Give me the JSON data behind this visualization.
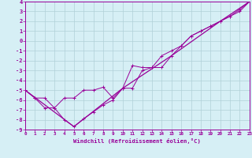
{
  "xlabel": "Windchill (Refroidissement éolien,°C)",
  "bg_color": "#d6eff5",
  "line_color": "#990099",
  "grid_color": "#b0d0d8",
  "x_min": 0,
  "x_max": 23,
  "y_min": -9,
  "y_max": 4,
  "series1_x": [
    0,
    1,
    2,
    3,
    4,
    5,
    6,
    7,
    8,
    9,
    10,
    11,
    12,
    13,
    14,
    15,
    16,
    17,
    18,
    19,
    20,
    21,
    22,
    23
  ],
  "series1_y": [
    -5.0,
    -5.8,
    -5.8,
    -6.8,
    -8.0,
    -8.7,
    -7.9,
    -7.2,
    -6.5,
    -6.0,
    -4.8,
    -4.8,
    -3.0,
    -2.7,
    -2.7,
    -1.5,
    -0.5,
    0.5,
    1.0,
    1.5,
    2.0,
    2.5,
    3.0,
    4.0
  ],
  "series2_x": [
    0,
    1,
    2,
    3,
    4,
    5,
    6,
    7,
    8,
    9,
    10,
    11,
    12,
    13,
    14,
    15,
    16,
    17,
    18,
    19,
    20,
    21,
    22,
    23
  ],
  "series2_y": [
    -5.0,
    -5.8,
    -6.8,
    -6.8,
    -5.8,
    -5.8,
    -5.0,
    -5.0,
    -4.7,
    -5.8,
    -4.8,
    -2.5,
    -2.7,
    -2.7,
    -1.5,
    -1.0,
    -0.5,
    0.5,
    1.0,
    1.5,
    2.0,
    2.5,
    3.2,
    4.0
  ],
  "series3_x": [
    0,
    5,
    10,
    15,
    20,
    23
  ],
  "series3_y": [
    -5.0,
    -8.7,
    -4.8,
    -1.5,
    2.0,
    4.0
  ],
  "xticks": [
    0,
    1,
    2,
    3,
    4,
    5,
    6,
    7,
    8,
    9,
    10,
    11,
    12,
    13,
    14,
    15,
    16,
    17,
    18,
    19,
    20,
    21,
    22,
    23
  ],
  "yticks": [
    -9,
    -8,
    -7,
    -6,
    -5,
    -4,
    -3,
    -2,
    -1,
    0,
    1,
    2,
    3,
    4
  ],
  "xtick_fontsize": 4.2,
  "ytick_fontsize": 5.0,
  "xlabel_fontsize": 5.2
}
